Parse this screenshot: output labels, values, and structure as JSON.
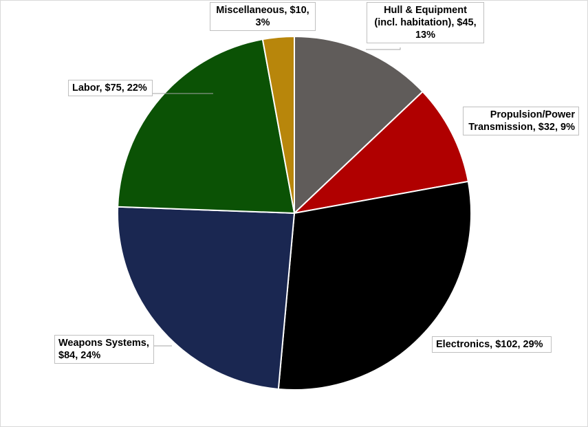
{
  "chart_data": {
    "type": "pie",
    "slices": [
      {
        "key": "hull",
        "label": [
          "Hull & Equipment",
          "(incl. habitation), $45,",
          "13%"
        ],
        "value": 45,
        "percent": 13,
        "color": "#605c5a"
      },
      {
        "key": "prop",
        "label": [
          "Propulsion/Power",
          "Transmission, $32, 9%"
        ],
        "value": 32,
        "percent": 9,
        "color": "#b00000"
      },
      {
        "key": "elec",
        "label": [
          "Electronics, $102, 29%"
        ],
        "value": 102,
        "percent": 29,
        "color": "#000000"
      },
      {
        "key": "weap",
        "label": [
          "Weapons Systems,",
          "$84, 24%"
        ],
        "value": 84,
        "percent": 24,
        "color": "#1a2751"
      },
      {
        "key": "labor",
        "label": [
          "Labor, $75, 22%"
        ],
        "value": 75,
        "percent": 22,
        "color": "#0b5205"
      },
      {
        "key": "misc",
        "label": [
          "Miscellaneous, $10,",
          "3%"
        ],
        "value": 10,
        "percent": 3,
        "color": "#b8860b"
      }
    ],
    "start_angle": "12 o'clock",
    "direction": "clockwise",
    "slice_border_color": "#ffffff",
    "legend": "none"
  }
}
